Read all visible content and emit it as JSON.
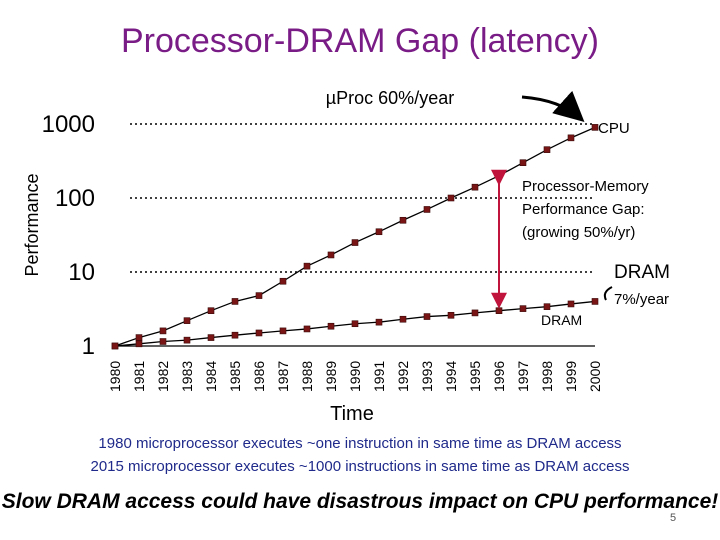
{
  "slide_title": "Processor-DRAM Gap (latency)",
  "chart_data": {
    "type": "line",
    "scale": "log",
    "ylabel": "Performance",
    "xlabel": "Time",
    "ylim": [
      1,
      1000
    ],
    "y_ticks": [
      "1",
      "10",
      "100",
      "1000"
    ],
    "categories": [
      "1980",
      "1981",
      "1982",
      "1983",
      "1984",
      "1985",
      "1986",
      "1987",
      "1988",
      "1989",
      "1990",
      "1991",
      "1992",
      "1993",
      "1994",
      "1995",
      "1996",
      "1997",
      "1998",
      "1999",
      "2000"
    ],
    "series": [
      {
        "name": "CPU",
        "values": [
          1,
          1.3,
          1.6,
          2.2,
          3,
          4,
          4.8,
          7.5,
          12,
          17,
          25,
          35,
          50,
          70,
          100,
          140,
          200,
          300,
          450,
          650,
          900
        ]
      },
      {
        "name": "DRAM",
        "values": [
          1,
          1.07,
          1.15,
          1.2,
          1.3,
          1.4,
          1.5,
          1.6,
          1.7,
          1.85,
          2,
          2.1,
          2.3,
          2.5,
          2.6,
          2.8,
          3,
          3.2,
          3.4,
          3.7,
          4
        ]
      }
    ],
    "annotations": {
      "cpu_rate": "µProc 60%/year",
      "cpu_label": "CPU",
      "gap_line1": "Processor-Memory",
      "gap_line2": "Performance Gap:",
      "gap_line3": "(growing 50%/yr)",
      "dram_label": "DRAM",
      "dram_rate": "7%/year",
      "dram_label_small": "DRAM"
    },
    "colors": {
      "cpu": "#000000",
      "dram": "#000000",
      "marker": "#7a1515",
      "gap_arrow": "#c0143c"
    }
  },
  "caption": {
    "line1": "1980 microprocessor executes ~one instruction in same time as DRAM access",
    "line2": "2015 microprocessor executes ~1000 instructions in same time as DRAM access"
  },
  "conclusion": "Slow DRAM access could have disastrous impact on CPU performance!",
  "slide_number": "5"
}
